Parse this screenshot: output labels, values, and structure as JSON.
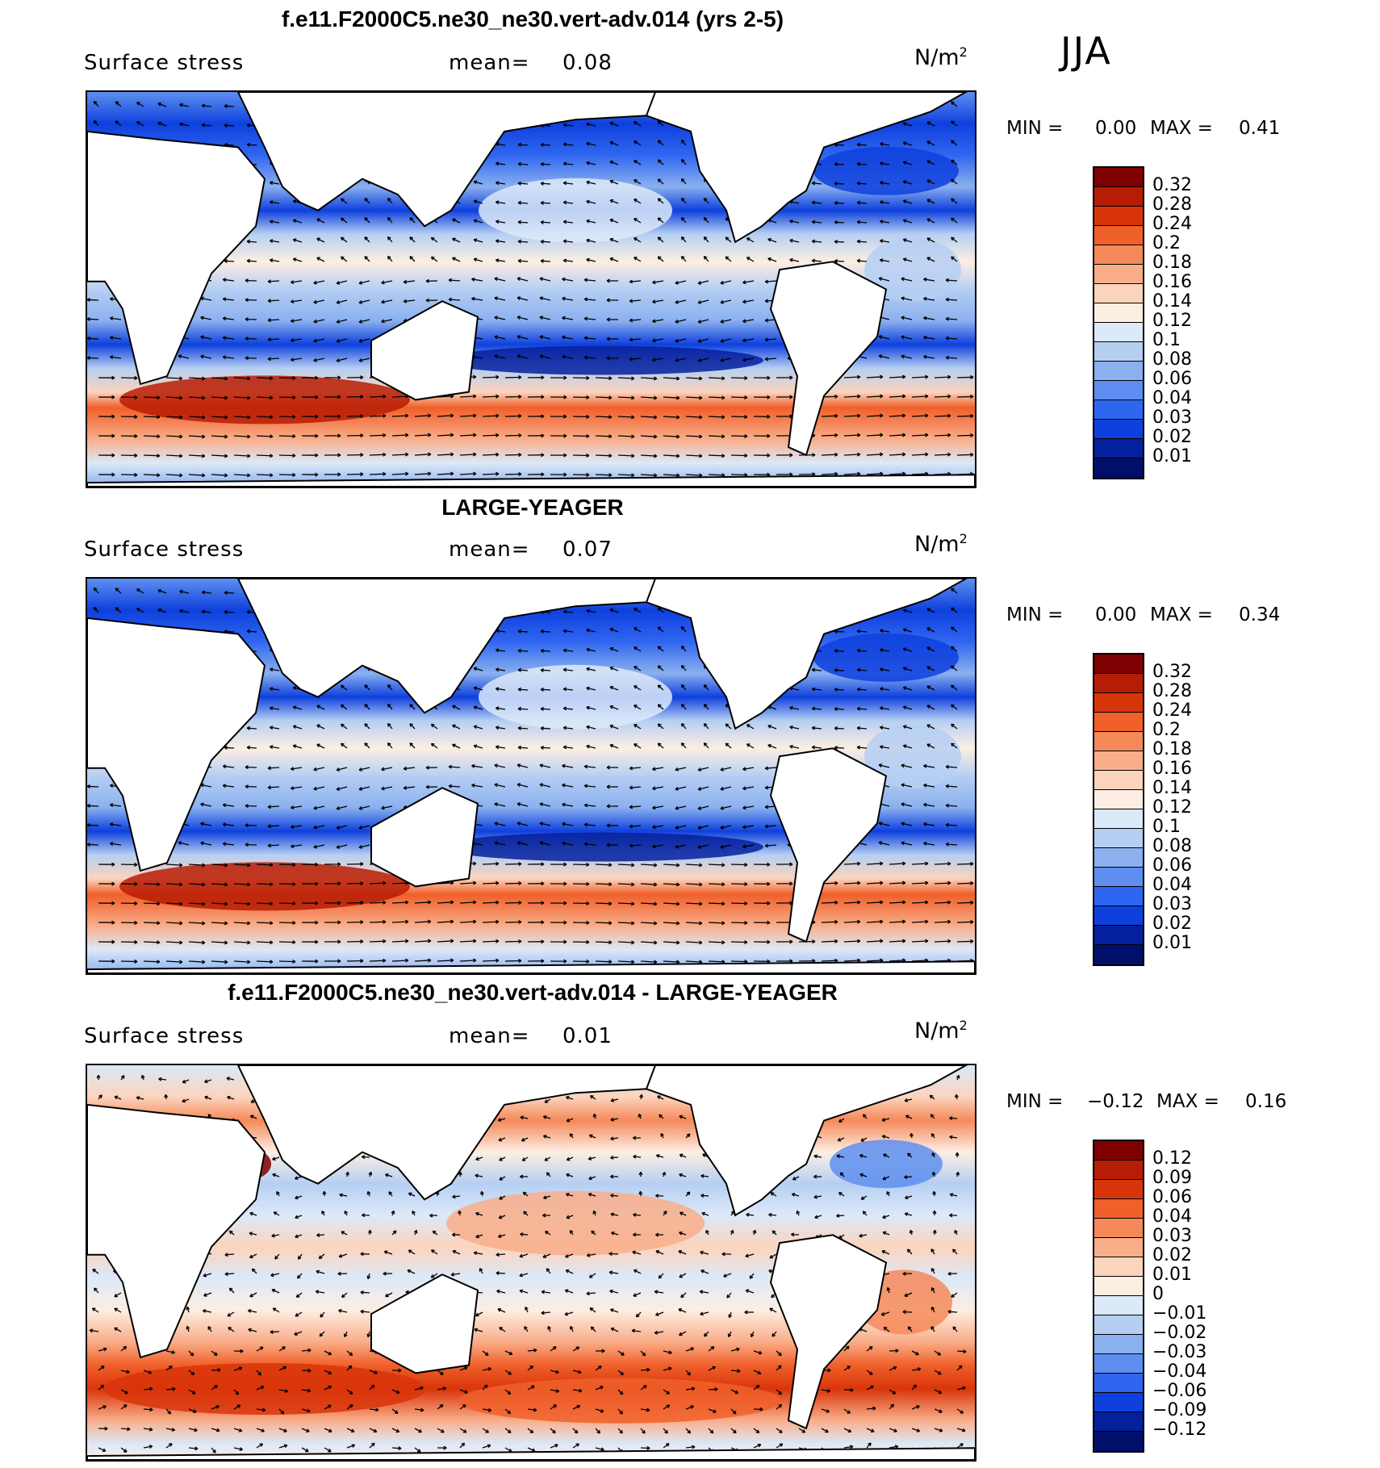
{
  "season": "JJA",
  "units_label": "N/m",
  "units_sup": "2",
  "panels": [
    {
      "title": "f.e11.F2000C5.ne30_ne30.vert-adv.014 (yrs 2-5)",
      "variable": "Surface stress",
      "mean_label": "mean=",
      "mean_value": "0.08",
      "min_label": "MIN =",
      "min_value": "0.00",
      "max_label": "MAX =",
      "max_value": "0.41",
      "colorbar_labels": [
        "0.32",
        "0.28",
        "0.24",
        "0.2",
        "0.18",
        "0.16",
        "0.14",
        "0.12",
        "0.1",
        "0.08",
        "0.06",
        "0.04",
        "0.03",
        "0.02",
        "0.01"
      ],
      "colorbar_colors": [
        "#7f0000",
        "#b71c05",
        "#d9350a",
        "#f0602a",
        "#f5895a",
        "#f9ae8a",
        "#fbd4bd",
        "#fdeee2",
        "#dce9f8",
        "#b5cff3",
        "#8ab0ef",
        "#5e8ff0",
        "#2f66f0",
        "#0e40dd",
        "#05209c",
        "#000f6a"
      ],
      "style": "mean"
    },
    {
      "title": "LARGE-YEAGER",
      "variable": "Surface stress",
      "mean_label": "mean=",
      "mean_value": "0.07",
      "min_label": "MIN =",
      "min_value": "0.00",
      "max_label": "MAX =",
      "max_value": "0.34",
      "colorbar_labels": [
        "0.32",
        "0.28",
        "0.24",
        "0.2",
        "0.18",
        "0.16",
        "0.14",
        "0.12",
        "0.1",
        "0.08",
        "0.06",
        "0.04",
        "0.03",
        "0.02",
        "0.01"
      ],
      "colorbar_colors": [
        "#7f0000",
        "#b71c05",
        "#d9350a",
        "#f0602a",
        "#f5895a",
        "#f9ae8a",
        "#fbd4bd",
        "#fdeee2",
        "#dce9f8",
        "#b5cff3",
        "#8ab0ef",
        "#5e8ff0",
        "#2f66f0",
        "#0e40dd",
        "#05209c",
        "#000f6a"
      ],
      "style": "mean"
    },
    {
      "title": "f.e11.F2000C5.ne30_ne30.vert-adv.014 - LARGE-YEAGER",
      "variable": "Surface stress",
      "mean_label": "mean=",
      "mean_value": "0.01",
      "min_label": "MIN =",
      "min_value": "−0.12",
      "max_label": "MAX =",
      "max_value": "0.16",
      "colorbar_labels": [
        "0.12",
        "0.09",
        "0.06",
        "0.04",
        "0.03",
        "0.02",
        "0.01",
        "0",
        "−0.01",
        "−0.02",
        "−0.03",
        "−0.04",
        "−0.06",
        "−0.09",
        "−0.12"
      ],
      "colorbar_colors": [
        "#7f0000",
        "#b71c05",
        "#d9350a",
        "#f0602a",
        "#f5895a",
        "#f9ae8a",
        "#fbd4bd",
        "#fdeee2",
        "#dce9f8",
        "#b5cff3",
        "#8ab0ef",
        "#5e8ff0",
        "#2f66f0",
        "#0e40dd",
        "#05209c",
        "#000f6a"
      ],
      "style": "diff"
    }
  ]
}
